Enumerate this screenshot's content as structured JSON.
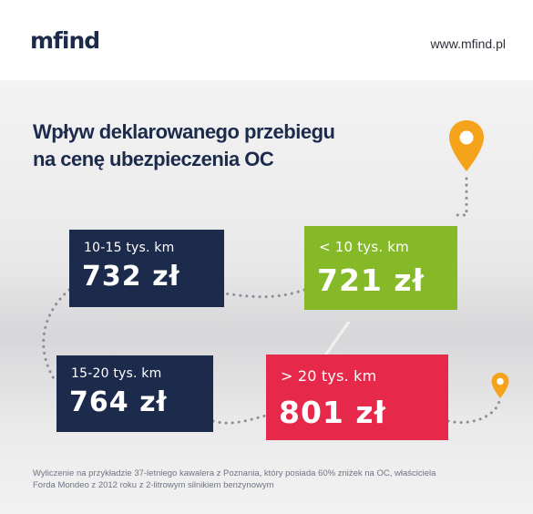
{
  "header": {
    "logo": "mfind",
    "site": "www.mfind.pl"
  },
  "title": {
    "line1": "Wpływ deklarowanego przebiegu",
    "line2": "na cenę ubezpieczenia OC"
  },
  "cards": [
    {
      "range": "10-15 tys. km",
      "price": "732 zł",
      "color": "#1c2b4c"
    },
    {
      "range": "< 10 tys. km",
      "price": "721 zł",
      "color": "#86b928"
    },
    {
      "range": "15-20 tys. km",
      "price": "764 zł",
      "color": "#1c2b4c"
    },
    {
      "range": "> 20 tys. km",
      "price": "801 zł",
      "color": "#e6294b"
    }
  ],
  "icons": {
    "pin_large": "map-pin-icon",
    "pin_small": "map-pin-icon",
    "pin_color": "#f5a31a"
  },
  "footnote": {
    "line1": "Wyliczenie na przykładzie 37-letniego kawalera z Poznania, który posiada 60% zniżek na OC, właściciela",
    "line2": "Forda Mondeo z 2012 roku z 2-litrowym silnikiem benzynowym"
  }
}
